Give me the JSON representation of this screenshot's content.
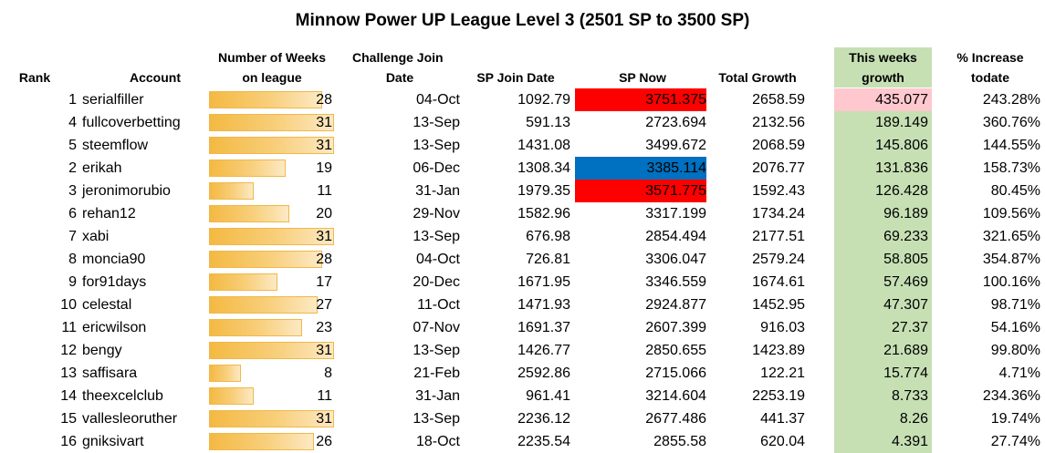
{
  "title": "Minnow Power UP League Level 3 (2501 SP to 3500 SP)",
  "headers": {
    "rank": "Rank",
    "account": "Account",
    "weeks_line1": "Number of Weeks",
    "weeks_line2": "on league",
    "join_line1": "Challenge Join",
    "join_line2": "Date",
    "sp_join": "SP Join Date",
    "sp_now": "SP Now",
    "total_growth": "Total Growth",
    "week_growth_line1": "This weeks",
    "week_growth_line2": "growth",
    "increase_line1": "% Increase",
    "increase_line2": "todate"
  },
  "colors": {
    "red_highlight": "#ff0000",
    "blue_highlight": "#0070c0",
    "pink_highlight": "#ffc7ce",
    "green_column": "#c6e0b4",
    "bar_color": "#f4b942"
  },
  "weeks_max": 31,
  "rows": [
    {
      "rank": "1",
      "account": "serialfiller",
      "weeks": 28,
      "join": "04-Oct",
      "sp_join": "1092.79",
      "sp_now": "3751.375",
      "sp_now_hl": "red",
      "total": "2658.59",
      "week_growth": "435.077",
      "week_hl": "pink",
      "increase": "243.28%"
    },
    {
      "rank": "4",
      "account": "fullcoverbetting",
      "weeks": 31,
      "join": "13-Sep",
      "sp_join": "591.13",
      "sp_now": "2723.694",
      "sp_now_hl": "",
      "total": "2132.56",
      "week_growth": "189.149",
      "week_hl": "",
      "increase": "360.76%"
    },
    {
      "rank": "5",
      "account": "steemflow",
      "weeks": 31,
      "join": "13-Sep",
      "sp_join": "1431.08",
      "sp_now": "3499.672",
      "sp_now_hl": "",
      "total": "2068.59",
      "week_growth": "145.806",
      "week_hl": "",
      "increase": "144.55%"
    },
    {
      "rank": "2",
      "account": "erikah",
      "weeks": 19,
      "join": "06-Dec",
      "sp_join": "1308.34",
      "sp_now": "3385.114",
      "sp_now_hl": "blue",
      "total": "2076.77",
      "week_growth": "131.836",
      "week_hl": "",
      "increase": "158.73%"
    },
    {
      "rank": "3",
      "account": "jeronimorubio",
      "weeks": 11,
      "join": "31-Jan",
      "sp_join": "1979.35",
      "sp_now": "3571.775",
      "sp_now_hl": "red",
      "total": "1592.43",
      "week_growth": "126.428",
      "week_hl": "",
      "increase": "80.45%"
    },
    {
      "rank": "6",
      "account": "rehan12",
      "weeks": 20,
      "join": "29-Nov",
      "sp_join": "1582.96",
      "sp_now": "3317.199",
      "sp_now_hl": "",
      "total": "1734.24",
      "week_growth": "96.189",
      "week_hl": "",
      "increase": "109.56%"
    },
    {
      "rank": "7",
      "account": "xabi",
      "weeks": 31,
      "join": "13-Sep",
      "sp_join": "676.98",
      "sp_now": "2854.494",
      "sp_now_hl": "",
      "total": "2177.51",
      "week_growth": "69.233",
      "week_hl": "",
      "increase": "321.65%"
    },
    {
      "rank": "8",
      "account": "moncia90",
      "weeks": 28,
      "join": "04-Oct",
      "sp_join": "726.81",
      "sp_now": "3306.047",
      "sp_now_hl": "",
      "total": "2579.24",
      "week_growth": "58.805",
      "week_hl": "",
      "increase": "354.87%"
    },
    {
      "rank": "9",
      "account": "for91days",
      "weeks": 17,
      "join": "20-Dec",
      "sp_join": "1671.95",
      "sp_now": "3346.559",
      "sp_now_hl": "",
      "total": "1674.61",
      "week_growth": "57.469",
      "week_hl": "",
      "increase": "100.16%"
    },
    {
      "rank": "10",
      "account": "celestal",
      "weeks": 27,
      "join": "11-Oct",
      "sp_join": "1471.93",
      "sp_now": "2924.877",
      "sp_now_hl": "",
      "total": "1452.95",
      "week_growth": "47.307",
      "week_hl": "",
      "increase": "98.71%"
    },
    {
      "rank": "11",
      "account": "ericwilson",
      "weeks": 23,
      "join": "07-Nov",
      "sp_join": "1691.37",
      "sp_now": "2607.399",
      "sp_now_hl": "",
      "total": "916.03",
      "week_growth": "27.37",
      "week_hl": "",
      "increase": "54.16%"
    },
    {
      "rank": "12",
      "account": "bengy",
      "weeks": 31,
      "join": "13-Sep",
      "sp_join": "1426.77",
      "sp_now": "2850.655",
      "sp_now_hl": "",
      "total": "1423.89",
      "week_growth": "21.689",
      "week_hl": "",
      "increase": "99.80%"
    },
    {
      "rank": "13",
      "account": "saffisara",
      "weeks": 8,
      "join": "21-Feb",
      "sp_join": "2592.86",
      "sp_now": "2715.066",
      "sp_now_hl": "",
      "total": "122.21",
      "week_growth": "15.774",
      "week_hl": "",
      "increase": "4.71%"
    },
    {
      "rank": "14",
      "account": "theexcelclub",
      "weeks": 11,
      "join": "31-Jan",
      "sp_join": "961.41",
      "sp_now": "3214.604",
      "sp_now_hl": "",
      "total": "2253.19",
      "week_growth": "8.733",
      "week_hl": "",
      "increase": "234.36%"
    },
    {
      "rank": "15",
      "account": "vallesleoruther",
      "weeks": 31,
      "join": "13-Sep",
      "sp_join": "2236.12",
      "sp_now": "2677.486",
      "sp_now_hl": "",
      "total": "441.37",
      "week_growth": "8.26",
      "week_hl": "",
      "increase": "19.74%"
    },
    {
      "rank": "16",
      "account": "gniksivart",
      "weeks": 26,
      "join": "18-Oct",
      "sp_join": "2235.54",
      "sp_now": "2855.58",
      "sp_now_hl": "",
      "total": "620.04",
      "week_growth": "4.391",
      "week_hl": "",
      "increase": "27.74%"
    }
  ]
}
